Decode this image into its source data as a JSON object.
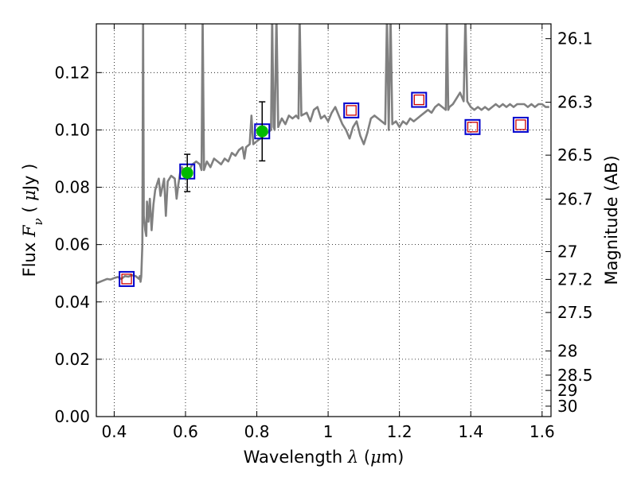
{
  "chart_data": {
    "type": "line",
    "xlabel_parts": [
      "Wavelength  ",
      "λ",
      " (",
      "μ",
      "m)"
    ],
    "ylabel_parts": [
      "Flux  ",
      "F",
      "ν",
      "  ( ",
      "μ",
      "Jy )"
    ],
    "y2label": "Magnitude (AB)",
    "xlim": [
      0.35,
      1.625
    ],
    "ylim": [
      0.0,
      0.137
    ],
    "x_ticks": [
      0.4,
      0.6,
      0.8,
      1.0,
      1.2,
      1.4,
      1.6
    ],
    "x_tick_labels": [
      "0.4",
      "0.6",
      "0.8",
      "1",
      "1.2",
      "1.4",
      "1.6"
    ],
    "y_ticks": [
      0.0,
      0.02,
      0.04,
      0.06,
      0.08,
      0.1,
      0.12
    ],
    "y_tick_labels": [
      "0.00",
      "0.02",
      "0.04",
      "0.06",
      "0.08",
      "0.10",
      "0.12"
    ],
    "y2_tick_labels": [
      "26.1",
      "26.3",
      "26.5",
      "26.7",
      "27",
      "27.2",
      "27.5",
      "28",
      "28.5",
      "29",
      "30"
    ],
    "grid": true,
    "colors": {
      "spectrum": "#808080",
      "detection": "#00bb00",
      "model_box": "#0000cc",
      "upper_limit_box": "#cc0000",
      "errorbar": "#000000"
    },
    "series": [
      {
        "kind": "spectrum",
        "points": [
          [
            0.35,
            0.0465
          ],
          [
            0.36,
            0.047
          ],
          [
            0.37,
            0.0475
          ],
          [
            0.38,
            0.048
          ],
          [
            0.39,
            0.0478
          ],
          [
            0.4,
            0.0483
          ],
          [
            0.41,
            0.0487
          ],
          [
            0.42,
            0.048
          ],
          [
            0.43,
            0.049
          ],
          [
            0.44,
            0.0488
          ],
          [
            0.45,
            0.0493
          ],
          [
            0.46,
            0.049
          ],
          [
            0.47,
            0.048
          ],
          [
            0.472,
            0.049
          ],
          [
            0.474,
            0.047
          ],
          [
            0.476,
            0.0488
          ],
          [
            0.479,
            0.06
          ],
          [
            0.481,
            0.14
          ],
          [
            0.483,
            0.07
          ],
          [
            0.487,
            0.065
          ],
          [
            0.49,
            0.063
          ],
          [
            0.492,
            0.075
          ],
          [
            0.496,
            0.068
          ],
          [
            0.5,
            0.076
          ],
          [
            0.505,
            0.065
          ],
          [
            0.51,
            0.074
          ],
          [
            0.515,
            0.079
          ],
          [
            0.52,
            0.081
          ],
          [
            0.525,
            0.083
          ],
          [
            0.53,
            0.077
          ],
          [
            0.54,
            0.083
          ],
          [
            0.545,
            0.07
          ],
          [
            0.55,
            0.082
          ],
          [
            0.56,
            0.084
          ],
          [
            0.57,
            0.083
          ],
          [
            0.575,
            0.076
          ],
          [
            0.58,
            0.081
          ],
          [
            0.585,
            0.085
          ],
          [
            0.59,
            0.087
          ],
          [
            0.6,
            0.085
          ],
          [
            0.61,
            0.086
          ],
          [
            0.62,
            0.088
          ],
          [
            0.63,
            0.089
          ],
          [
            0.64,
            0.088
          ],
          [
            0.645,
            0.086
          ],
          [
            0.648,
            0.14
          ],
          [
            0.652,
            0.086
          ],
          [
            0.66,
            0.089
          ],
          [
            0.67,
            0.087
          ],
          [
            0.68,
            0.09
          ],
          [
            0.69,
            0.089
          ],
          [
            0.7,
            0.088
          ],
          [
            0.71,
            0.09
          ],
          [
            0.72,
            0.089
          ],
          [
            0.73,
            0.092
          ],
          [
            0.74,
            0.091
          ],
          [
            0.75,
            0.093
          ],
          [
            0.76,
            0.094
          ],
          [
            0.765,
            0.09
          ],
          [
            0.77,
            0.094
          ],
          [
            0.78,
            0.095
          ],
          [
            0.785,
            0.105
          ],
          [
            0.79,
            0.095
          ],
          [
            0.8,
            0.096
          ],
          [
            0.81,
            0.097
          ],
          [
            0.82,
            0.098
          ],
          [
            0.83,
            0.099
          ],
          [
            0.84,
            0.1
          ],
          [
            0.843,
            0.14
          ],
          [
            0.847,
            0.101
          ],
          [
            0.85,
            0.1
          ],
          [
            0.855,
            0.14
          ],
          [
            0.86,
            0.101
          ],
          [
            0.87,
            0.104
          ],
          [
            0.88,
            0.102
          ],
          [
            0.89,
            0.105
          ],
          [
            0.9,
            0.104
          ],
          [
            0.91,
            0.105
          ],
          [
            0.917,
            0.104
          ],
          [
            0.92,
            0.14
          ],
          [
            0.925,
            0.105
          ],
          [
            0.94,
            0.106
          ],
          [
            0.95,
            0.103
          ],
          [
            0.96,
            0.107
          ],
          [
            0.97,
            0.108
          ],
          [
            0.98,
            0.104
          ],
          [
            0.99,
            0.105
          ],
          [
            1.0,
            0.103
          ],
          [
            1.01,
            0.106
          ],
          [
            1.02,
            0.108
          ],
          [
            1.03,
            0.105
          ],
          [
            1.04,
            0.102
          ],
          [
            1.05,
            0.1
          ],
          [
            1.06,
            0.097
          ],
          [
            1.07,
            0.101
          ],
          [
            1.08,
            0.103
          ],
          [
            1.09,
            0.098
          ],
          [
            1.1,
            0.095
          ],
          [
            1.11,
            0.099
          ],
          [
            1.12,
            0.104
          ],
          [
            1.13,
            0.105
          ],
          [
            1.14,
            0.104
          ],
          [
            1.15,
            0.103
          ],
          [
            1.16,
            0.102
          ],
          [
            1.165,
            0.14
          ],
          [
            1.17,
            0.1
          ],
          [
            1.175,
            0.14
          ],
          [
            1.18,
            0.102
          ],
          [
            1.19,
            0.103
          ],
          [
            1.2,
            0.101
          ],
          [
            1.21,
            0.103
          ],
          [
            1.22,
            0.102
          ],
          [
            1.23,
            0.104
          ],
          [
            1.24,
            0.103
          ],
          [
            1.25,
            0.104
          ],
          [
            1.26,
            0.105
          ],
          [
            1.27,
            0.106
          ],
          [
            1.28,
            0.107
          ],
          [
            1.29,
            0.106
          ],
          [
            1.3,
            0.108
          ],
          [
            1.31,
            0.109
          ],
          [
            1.32,
            0.108
          ],
          [
            1.33,
            0.107
          ],
          [
            1.333,
            0.14
          ],
          [
            1.337,
            0.107
          ],
          [
            1.34,
            0.108
          ],
          [
            1.35,
            0.109
          ],
          [
            1.36,
            0.111
          ],
          [
            1.37,
            0.113
          ],
          [
            1.38,
            0.11
          ],
          [
            1.385,
            0.14
          ],
          [
            1.39,
            0.11
          ],
          [
            1.4,
            0.108
          ],
          [
            1.41,
            0.107
          ],
          [
            1.42,
            0.108
          ],
          [
            1.43,
            0.107
          ],
          [
            1.44,
            0.108
          ],
          [
            1.45,
            0.107
          ],
          [
            1.46,
            0.108
          ],
          [
            1.47,
            0.109
          ],
          [
            1.48,
            0.108
          ],
          [
            1.49,
            0.109
          ],
          [
            1.5,
            0.108
          ],
          [
            1.51,
            0.109
          ],
          [
            1.52,
            0.108
          ],
          [
            1.53,
            0.109
          ],
          [
            1.54,
            0.109
          ],
          [
            1.55,
            0.109
          ],
          [
            1.56,
            0.108
          ],
          [
            1.57,
            0.109
          ],
          [
            1.58,
            0.108
          ],
          [
            1.59,
            0.109
          ],
          [
            1.6,
            0.109
          ],
          [
            1.61,
            0.108
          ],
          [
            1.62,
            0.108
          ]
        ]
      },
      {
        "kind": "model-photometry",
        "points": [
          [
            0.435,
            0.048
          ],
          [
            0.605,
            0.0855
          ],
          [
            0.815,
            0.0995
          ],
          [
            1.065,
            0.1068
          ],
          [
            1.255,
            0.1105
          ],
          [
            1.405,
            0.101
          ],
          [
            1.54,
            0.1018
          ]
        ]
      },
      {
        "kind": "upper-limits",
        "points": [
          [
            0.435,
            0.048
          ],
          [
            1.065,
            0.1068
          ],
          [
            1.255,
            0.1105
          ],
          [
            1.405,
            0.101
          ],
          [
            1.54,
            0.1018
          ]
        ]
      },
      {
        "kind": "detections",
        "points": [
          {
            "x": 0.605,
            "y": 0.085,
            "err": 0.0065
          },
          {
            "x": 0.815,
            "y": 0.0995,
            "err": 0.0103
          }
        ]
      }
    ]
  }
}
